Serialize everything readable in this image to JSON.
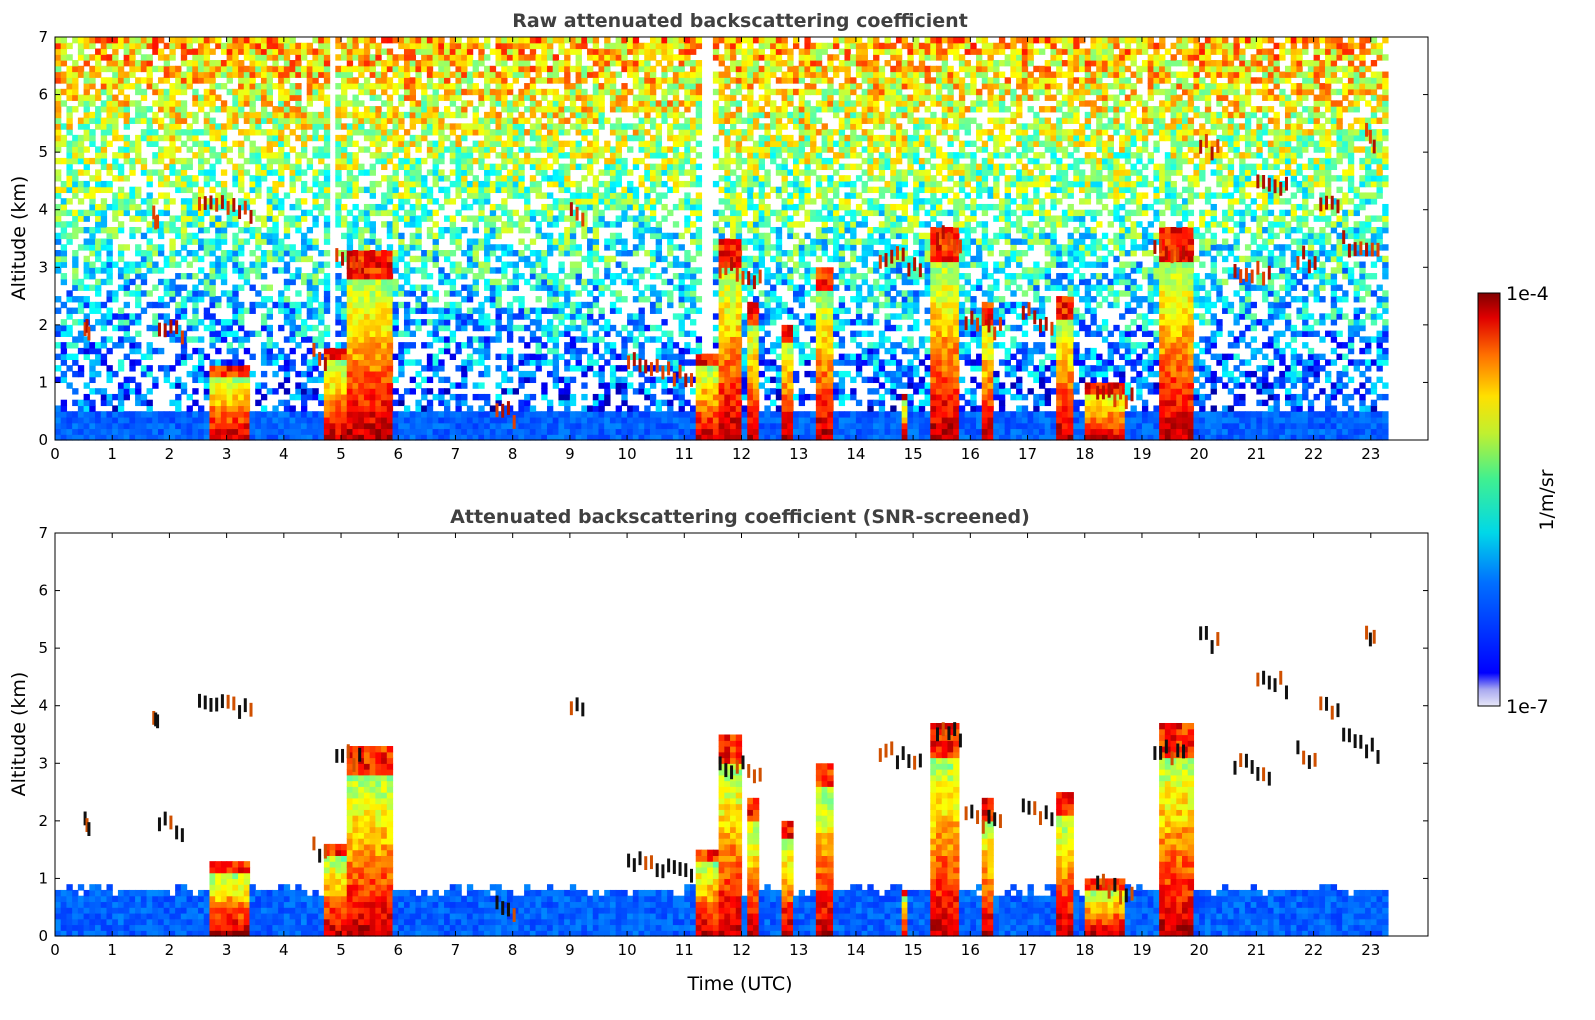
{
  "chart_data": [
    {
      "type": "heatmap",
      "title": "Raw attenuated backscattering coefficient",
      "xlabel": "",
      "ylabel": "Altitude (km)",
      "xlim": [
        0,
        24
      ],
      "ylim": [
        0,
        7
      ],
      "xticks": [
        "0",
        "1",
        "2",
        "3",
        "4",
        "5",
        "6",
        "7",
        "8",
        "9",
        "10",
        "11",
        "12",
        "13",
        "14",
        "15",
        "16",
        "17",
        "18",
        "19",
        "20",
        "21",
        "22",
        "23"
      ],
      "yticks": [
        "0",
        "1",
        "2",
        "3",
        "4",
        "5",
        "6",
        "7"
      ],
      "data_end_time": 23.3,
      "boundary_layer_top_km": 0.5,
      "precip_shafts": [
        {
          "t0": 2.7,
          "t1": 3.4,
          "top": 1.3
        },
        {
          "t0": 4.75,
          "t1": 5.05,
          "top": 1.6
        },
        {
          "t0": 5.05,
          "t1": 5.9,
          "top": 3.3
        },
        {
          "t0": 11.25,
          "t1": 11.6,
          "top": 1.5
        },
        {
          "t0": 11.6,
          "t1": 12.0,
          "top": 3.5
        },
        {
          "t0": 12.15,
          "t1": 12.35,
          "top": 2.4
        },
        {
          "t0": 12.7,
          "t1": 12.95,
          "top": 2.0
        },
        {
          "t0": 13.35,
          "t1": 13.55,
          "top": 3.0
        },
        {
          "t0": 14.8,
          "t1": 14.95,
          "top": 0.8
        },
        {
          "t0": 15.3,
          "t1": 15.8,
          "top": 3.7
        },
        {
          "t0": 16.25,
          "t1": 16.4,
          "top": 2.4
        },
        {
          "t0": 17.55,
          "t1": 17.8,
          "top": 2.5
        },
        {
          "t0": 18.0,
          "t1": 18.7,
          "top": 1.0
        },
        {
          "t0": 19.3,
          "t1": 19.85,
          "top": 3.7
        }
      ],
      "cloud_layers": [
        {
          "t0": 0.5,
          "t1": 0.6,
          "alt": 1.95
        },
        {
          "t0": 1.7,
          "t1": 1.8,
          "alt": 3.9
        },
        {
          "t0": 1.8,
          "t1": 2.3,
          "alt": 2.0
        },
        {
          "t0": 2.5,
          "t1": 3.5,
          "alt": 4.1
        },
        {
          "t0": 4.5,
          "t1": 4.8,
          "alt": 1.5
        },
        {
          "t0": 4.9,
          "t1": 5.4,
          "alt": 3.2
        },
        {
          "t0": 7.7,
          "t1": 8.1,
          "alt": 0.55
        },
        {
          "t0": 9.0,
          "t1": 9.3,
          "alt": 4.05
        },
        {
          "t0": 10.0,
          "t1": 11.2,
          "alt": 1.3
        },
        {
          "t0": 11.6,
          "t1": 12.4,
          "alt": 3.0
        },
        {
          "t0": 14.4,
          "t1": 15.2,
          "alt": 3.2
        },
        {
          "t0": 15.4,
          "t1": 15.9,
          "alt": 3.6
        },
        {
          "t0": 15.9,
          "t1": 16.6,
          "alt": 2.1
        },
        {
          "t0": 16.9,
          "t1": 17.5,
          "alt": 2.2
        },
        {
          "t0": 18.2,
          "t1": 18.9,
          "alt": 0.9
        },
        {
          "t0": 19.2,
          "t1": 19.8,
          "alt": 3.3
        },
        {
          "t0": 20.0,
          "t1": 20.4,
          "alt": 5.2
        },
        {
          "t0": 20.6,
          "t1": 21.3,
          "alt": 3.0
        },
        {
          "t0": 21.0,
          "t1": 21.6,
          "alt": 4.5
        },
        {
          "t0": 22.1,
          "t1": 22.5,
          "alt": 4.1
        },
        {
          "t0": 21.7,
          "t1": 22.1,
          "alt": 3.2
        },
        {
          "t0": 22.5,
          "t1": 23.2,
          "alt": 3.4
        },
        {
          "t0": 22.9,
          "t1": 23.1,
          "alt": 5.3
        }
      ]
    },
    {
      "type": "heatmap",
      "title": "Attenuated backscattering coefficient (SNR-screened)",
      "xlabel": "Time (UTC)",
      "ylabel": "Altitude (km)",
      "xlim": [
        0,
        24
      ],
      "ylim": [
        0,
        7
      ],
      "xticks": [
        "0",
        "1",
        "2",
        "3",
        "4",
        "5",
        "6",
        "7",
        "8",
        "9",
        "10",
        "11",
        "12",
        "13",
        "14",
        "15",
        "16",
        "17",
        "18",
        "19",
        "20",
        "21",
        "22",
        "23"
      ],
      "yticks": [
        "0",
        "1",
        "2",
        "3",
        "4",
        "5",
        "6",
        "7"
      ],
      "data_end_time": 23.3,
      "screened_boundary_top_km": 0.8
    }
  ],
  "colorbar": {
    "label": "1/m/sr",
    "min_label": "1e-7",
    "max_label": "1e-4",
    "scale": "log",
    "colormap": "jet"
  }
}
